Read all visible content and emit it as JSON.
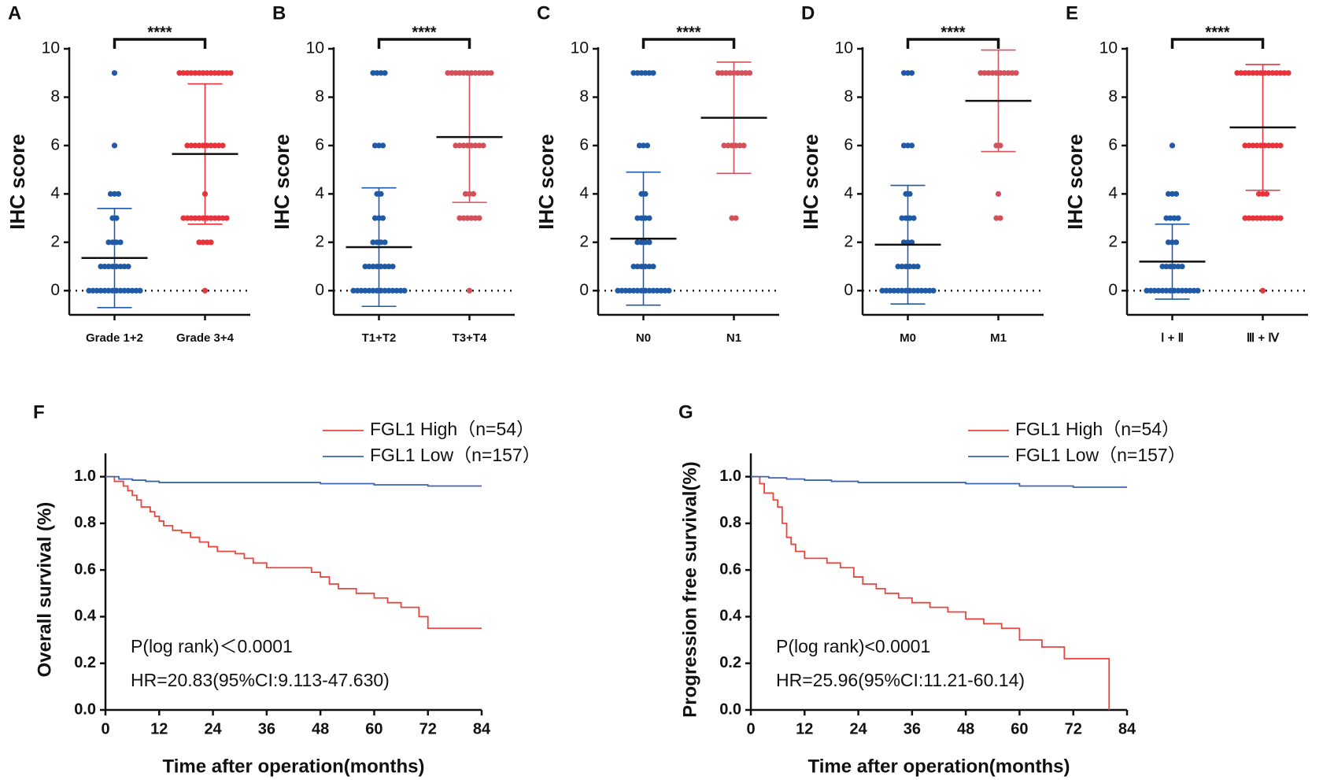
{
  "chart_data": [
    {
      "type": "scatter",
      "label": "A",
      "ylabel": "IHC score",
      "annotation": "****",
      "categories": [
        "Grade 1+2",
        "Grade 3+4"
      ],
      "ylim": [
        -1,
        10
      ],
      "yticks": [
        0,
        2,
        4,
        6,
        8,
        10
      ],
      "series": [
        {
          "color": "#1f5aa6",
          "mean": 1.35,
          "sd": 2.05,
          "values": [
            0,
            0,
            0,
            0,
            0,
            0,
            0,
            0,
            0,
            0,
            0,
            0,
            0,
            0,
            1,
            1,
            1,
            1,
            1,
            1,
            1,
            1,
            2,
            2,
            2,
            2,
            3,
            3,
            4,
            4,
            4,
            6,
            9
          ]
        },
        {
          "color": "#e8323c",
          "mean": 5.65,
          "sd": 2.9,
          "values": [
            9,
            9,
            9,
            9,
            9,
            9,
            9,
            9,
            9,
            9,
            9,
            9,
            9,
            9,
            6,
            6,
            6,
            6,
            6,
            6,
            6,
            6,
            6,
            6,
            3,
            3,
            3,
            3,
            3,
            3,
            3,
            3,
            3,
            3,
            3,
            3,
            2,
            2,
            2,
            2,
            4,
            0
          ]
        }
      ]
    },
    {
      "type": "scatter",
      "label": "B",
      "ylabel": "IHC score",
      "annotation": "****",
      "categories": [
        "T1+T2",
        "T3+T4"
      ],
      "ylim": [
        -1,
        10
      ],
      "yticks": [
        0,
        2,
        4,
        6,
        8,
        10
      ],
      "series": [
        {
          "color": "#1f5aa6",
          "mean": 1.8,
          "sd": 2.45,
          "values": [
            0,
            0,
            0,
            0,
            0,
            0,
            0,
            0,
            0,
            0,
            0,
            0,
            0,
            0,
            1,
            1,
            1,
            1,
            1,
            1,
            1,
            1,
            2,
            2,
            2,
            2,
            3,
            3,
            3,
            4,
            4,
            6,
            6,
            6,
            9,
            9,
            9,
            9
          ]
        },
        {
          "color": "#d4505a",
          "mean": 6.35,
          "sd": 2.7,
          "values": [
            9,
            9,
            9,
            9,
            9,
            9,
            9,
            9,
            9,
            9,
            9,
            9,
            6,
            6,
            6,
            6,
            6,
            6,
            6,
            6,
            4,
            4,
            4,
            3,
            3,
            3,
            3,
            3,
            3,
            0
          ]
        }
      ]
    },
    {
      "type": "scatter",
      "label": "C",
      "ylabel": "IHC score",
      "annotation": "****",
      "categories": [
        "N0",
        "N1"
      ],
      "ylim": [
        -1,
        10
      ],
      "yticks": [
        0,
        2,
        4,
        6,
        8,
        10
      ],
      "series": [
        {
          "color": "#1f5aa6",
          "mean": 2.15,
          "sd": 2.75,
          "values": [
            0,
            0,
            0,
            0,
            0,
            0,
            0,
            0,
            0,
            0,
            0,
            0,
            0,
            0,
            1,
            1,
            1,
            1,
            1,
            1,
            2,
            2,
            2,
            2,
            3,
            3,
            3,
            3,
            4,
            4,
            6,
            6,
            6,
            9,
            9,
            9,
            9,
            9,
            9
          ]
        },
        {
          "color": "#d4505a",
          "mean": 7.15,
          "sd": 2.3,
          "values": [
            9,
            9,
            9,
            9,
            9,
            9,
            9,
            9,
            9,
            6,
            6,
            6,
            6,
            6,
            6,
            3,
            3
          ]
        }
      ]
    },
    {
      "type": "scatter",
      "label": "D",
      "ylabel": "IHC score",
      "annotation": "****",
      "categories": [
        "M0",
        "M1"
      ],
      "ylim": [
        -1,
        10
      ],
      "yticks": [
        0,
        2,
        4,
        6,
        8,
        10
      ],
      "series": [
        {
          "color": "#1f5aa6",
          "mean": 1.9,
          "sd": 2.45,
          "values": [
            0,
            0,
            0,
            0,
            0,
            0,
            0,
            0,
            0,
            0,
            0,
            0,
            0,
            0,
            1,
            1,
            1,
            1,
            1,
            1,
            2,
            2,
            2,
            3,
            3,
            3,
            3,
            4,
            4,
            6,
            6,
            6,
            9,
            9,
            9
          ]
        },
        {
          "color": "#d4505a",
          "mean": 7.85,
          "sd": 2.1,
          "values": [
            9,
            9,
            9,
            9,
            9,
            9,
            9,
            9,
            9,
            9,
            6,
            6,
            4,
            3,
            3
          ]
        }
      ]
    },
    {
      "type": "scatter",
      "label": "E",
      "ylabel": "IHC score",
      "annotation": "****",
      "categories": [
        "Ⅰ + Ⅱ",
        "Ⅲ + Ⅳ"
      ],
      "ylim": [
        -1,
        10
      ],
      "yticks": [
        0,
        2,
        4,
        6,
        8,
        10
      ],
      "series": [
        {
          "color": "#1f5aa6",
          "mean": 1.2,
          "sd": 1.55,
          "values": [
            0,
            0,
            0,
            0,
            0,
            0,
            0,
            0,
            0,
            0,
            0,
            0,
            0,
            0,
            1,
            1,
            1,
            1,
            1,
            1,
            2,
            2,
            2,
            3,
            3,
            3,
            3,
            4,
            4,
            4,
            6
          ]
        },
        {
          "color": "#e8323c",
          "mean": 6.75,
          "sd": 2.6,
          "values": [
            9,
            9,
            9,
            9,
            9,
            9,
            9,
            9,
            9,
            9,
            9,
            9,
            9,
            9,
            6,
            6,
            6,
            6,
            6,
            6,
            6,
            6,
            6,
            6,
            4,
            4,
            4,
            3,
            3,
            3,
            3,
            3,
            3,
            3,
            3,
            3,
            3,
            0
          ]
        }
      ]
    },
    {
      "type": "line",
      "label": "F",
      "xlabel": "Time after operation(months)",
      "ylabel": "Overall survival (%)",
      "annotations": [
        "P(log rank)＜0.0001",
        "HR=20.83(95%CI:9.113-47.630)"
      ],
      "xlim": [
        0,
        84
      ],
      "xticks": [
        0,
        12,
        24,
        36,
        48,
        60,
        72,
        84
      ],
      "ylim": [
        0,
        1.1
      ],
      "yticks": [
        {
          "value": 0,
          "label": "0.0"
        },
        0.2,
        0.4,
        0.6,
        0.8,
        {
          "value": 1,
          "label": "1.0"
        }
      ],
      "series": [
        {
          "name": "FGL1 High（n=54）",
          "color": "#e8463f",
          "x": [
            0,
            2,
            4,
            5,
            6,
            7,
            8,
            10,
            11,
            12,
            13,
            15,
            17,
            19,
            21,
            23,
            25,
            29,
            31,
            33,
            36,
            46,
            48,
            50,
            52,
            56,
            60,
            63,
            66,
            70,
            72,
            84
          ],
          "values": [
            1,
            0.98,
            0.96,
            0.94,
            0.92,
            0.9,
            0.87,
            0.85,
            0.83,
            0.81,
            0.79,
            0.77,
            0.76,
            0.74,
            0.72,
            0.7,
            0.68,
            0.67,
            0.65,
            0.63,
            0.61,
            0.59,
            0.57,
            0.54,
            0.52,
            0.5,
            0.48,
            0.46,
            0.44,
            0.4,
            0.35,
            0.35
          ]
        },
        {
          "name": "FGL1 Low（n=157）",
          "color": "#3e64b0",
          "x": [
            0,
            3,
            6,
            9,
            12,
            48,
            60,
            72,
            84
          ],
          "values": [
            1,
            0.99,
            0.985,
            0.98,
            0.975,
            0.97,
            0.965,
            0.96,
            0.96
          ]
        }
      ]
    },
    {
      "type": "line",
      "label": "G",
      "xlabel": "Time after operation(months)",
      "ylabel": "Progression free survival(%)",
      "annotations": [
        "P(log rank)<0.0001",
        "HR=25.96(95%CI:11.21-60.14)"
      ],
      "xlim": [
        0,
        84
      ],
      "xticks": [
        0,
        12,
        24,
        36,
        48,
        60,
        72,
        84
      ],
      "ylim": [
        0,
        1.1
      ],
      "yticks": [
        {
          "value": 0,
          "label": "0.0"
        },
        0.2,
        0.4,
        0.6,
        0.8,
        {
          "value": 1,
          "label": "1.0"
        }
      ],
      "series": [
        {
          "name": "FGL1 High（n=54）",
          "color": "#e8463f",
          "x": [
            0,
            2,
            3,
            5,
            6,
            7,
            8,
            9,
            10,
            12,
            17,
            20,
            23,
            25,
            28,
            30,
            33,
            36,
            40,
            44,
            48,
            52,
            56,
            60,
            65,
            70,
            80
          ],
          "values": [
            1,
            0.97,
            0.93,
            0.9,
            0.87,
            0.8,
            0.74,
            0.71,
            0.68,
            0.65,
            0.63,
            0.61,
            0.57,
            0.54,
            0.52,
            0.5,
            0.48,
            0.46,
            0.44,
            0.42,
            0.39,
            0.37,
            0.35,
            0.3,
            0.27,
            0.22,
            0
          ]
        },
        {
          "name": "FGL1 Low（n=157）",
          "color": "#3e64b0",
          "x": [
            0,
            4,
            8,
            12,
            18,
            24,
            48,
            60,
            72,
            84
          ],
          "values": [
            1,
            0.995,
            0.99,
            0.985,
            0.98,
            0.975,
            0.97,
            0.96,
            0.955,
            0.955
          ]
        }
      ]
    }
  ]
}
